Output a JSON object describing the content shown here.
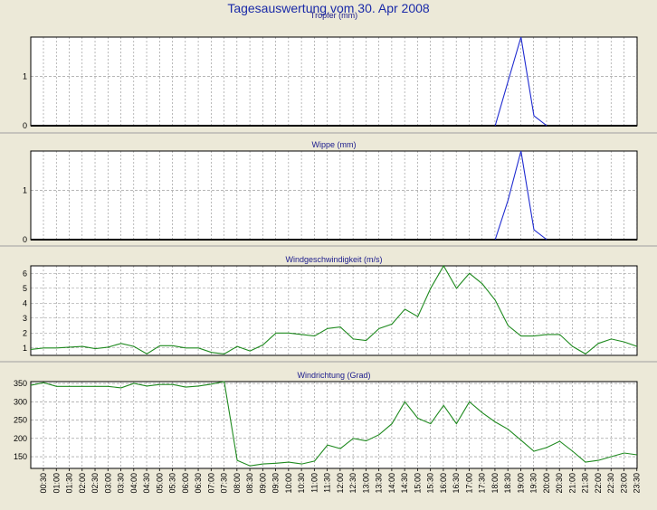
{
  "page": {
    "title": "Tagesauswertung vom 30. Apr 2008"
  },
  "colors": {
    "background": "#ece9d8",
    "plot_bg": "#ffffff",
    "grid": "#8c8c8c",
    "rain": "#1f2bd0",
    "wind": "#1f8a1f",
    "title": "#1a2aa8"
  },
  "chart_data": [
    {
      "type": "line",
      "title": "Tropfer (mm)",
      "color": "#1f2bd0",
      "ylim": [
        0,
        1.8
      ],
      "yticks": [
        0,
        1
      ],
      "x": [
        18.0,
        18.5,
        19.0,
        19.5,
        20.0
      ],
      "values": [
        0,
        0.9,
        1.8,
        0.2,
        0
      ]
    },
    {
      "type": "line",
      "title": "Wippe (mm)",
      "color": "#1f2bd0",
      "ylim": [
        0,
        1.8
      ],
      "yticks": [
        0,
        1
      ],
      "x": [
        18.0,
        18.5,
        19.0,
        19.5,
        20.0
      ],
      "values": [
        0,
        0.8,
        1.8,
        0.2,
        0
      ]
    },
    {
      "type": "line",
      "title": "Windgeschwindigkeit (m/s)",
      "color": "#1f8a1f",
      "ylim": [
        0.5,
        6.5
      ],
      "yticks": [
        1,
        2,
        3,
        4,
        5,
        6
      ],
      "x": [
        0.0,
        0.5,
        1.0,
        1.5,
        2.0,
        2.5,
        3.0,
        3.5,
        4.0,
        4.5,
        5.0,
        5.5,
        6.0,
        6.5,
        7.0,
        7.5,
        8.0,
        8.5,
        9.0,
        9.5,
        10.0,
        10.5,
        11.0,
        11.5,
        12.0,
        12.5,
        13.0,
        13.5,
        14.0,
        14.5,
        15.0,
        15.5,
        16.0,
        16.5,
        17.0,
        17.5,
        18.0,
        18.5,
        19.0,
        19.5,
        20.0,
        20.5,
        21.0,
        21.5,
        22.0,
        22.5,
        23.0,
        23.5
      ],
      "values": [
        0.9,
        1.0,
        1.0,
        1.05,
        1.1,
        0.95,
        1.05,
        1.3,
        1.1,
        0.6,
        1.15,
        1.15,
        1.0,
        1.0,
        0.7,
        0.6,
        1.1,
        0.8,
        1.2,
        2.0,
        2.0,
        1.9,
        1.8,
        2.3,
        2.4,
        1.6,
        1.5,
        2.3,
        2.6,
        3.6,
        3.1,
        5.0,
        6.5,
        5.0,
        6.0,
        5.3,
        4.2,
        2.5,
        1.8,
        1.8,
        1.9,
        1.9,
        1.1,
        0.6,
        1.3,
        1.6,
        1.4,
        1.1
      ]
    },
    {
      "type": "line",
      "title": "Windrichtung (Grad)",
      "color": "#1f8a1f",
      "ylim": [
        118,
        355
      ],
      "yticks": [
        150,
        200,
        250,
        300,
        350
      ],
      "x": [
        0.0,
        0.5,
        1.0,
        1.5,
        2.0,
        2.5,
        3.0,
        3.5,
        4.0,
        4.5,
        5.0,
        5.5,
        6.0,
        6.5,
        7.0,
        7.5,
        8.0,
        8.5,
        9.0,
        9.5,
        10.0,
        10.5,
        11.0,
        11.5,
        12.0,
        12.5,
        13.0,
        13.5,
        14.0,
        14.5,
        15.0,
        15.5,
        16.0,
        16.5,
        17.0,
        17.5,
        18.0,
        18.5,
        19.0,
        19.5,
        20.0,
        20.5,
        21.0,
        21.5,
        22.0,
        22.5,
        23.0,
        23.5
      ],
      "values": [
        345,
        352,
        342,
        342,
        342,
        342,
        342,
        338,
        350,
        343,
        347,
        347,
        340,
        343,
        348,
        355,
        140,
        125,
        130,
        132,
        135,
        130,
        138,
        182,
        172,
        200,
        193,
        210,
        240,
        300,
        255,
        240,
        290,
        240,
        300,
        270,
        245,
        225,
        195,
        165,
        175,
        192,
        165,
        135,
        140,
        150,
        160,
        155
      ]
    }
  ],
  "x_axis": {
    "ticks": [
      "00:30",
      "01:00",
      "01:30",
      "02:00",
      "02:30",
      "03:00",
      "03:30",
      "04:00",
      "04:30",
      "05:00",
      "05:30",
      "06:00",
      "06:30",
      "07:00",
      "07:30",
      "08:00",
      "08:30",
      "09:00",
      "09:30",
      "10:00",
      "10:30",
      "11:00",
      "11:30",
      "12:00",
      "12:30",
      "13:00",
      "13:30",
      "14:00",
      "14:30",
      "15:00",
      "15:30",
      "16:00",
      "16:30",
      "17:00",
      "17:30",
      "18:00",
      "18:30",
      "19:00",
      "19:30",
      "20:00",
      "20:30",
      "21:00",
      "21:30",
      "22:00",
      "22:30",
      "23:00",
      "23:30"
    ],
    "xlim": [
      0.0,
      23.5
    ]
  },
  "grid": true
}
